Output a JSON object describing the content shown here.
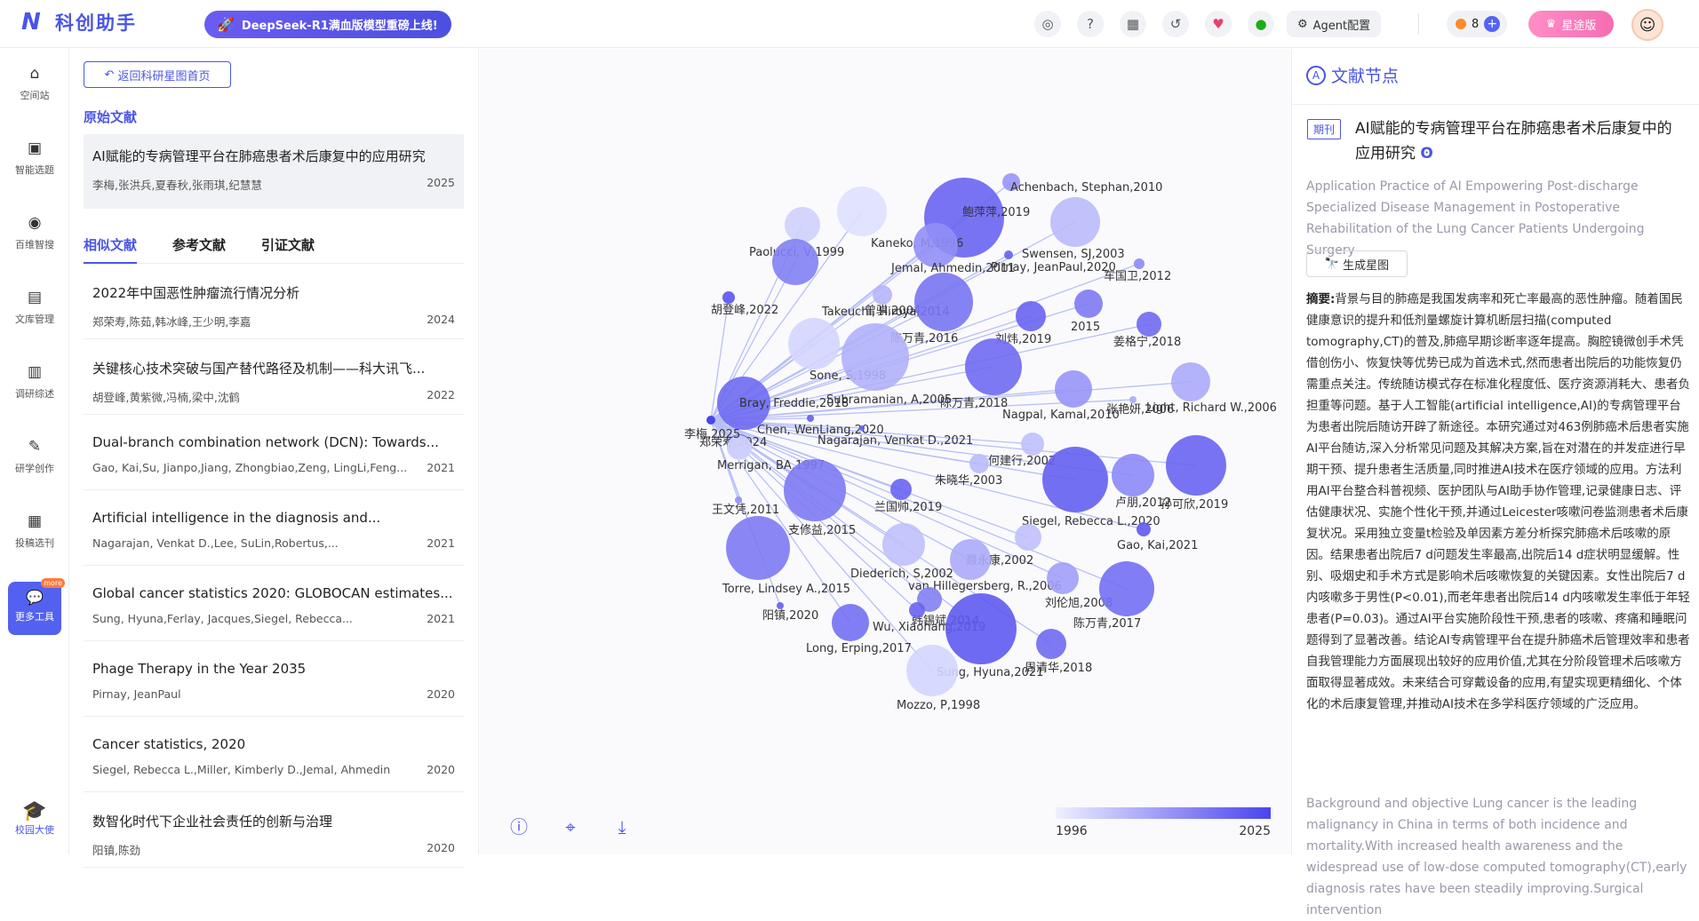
{
  "app": {
    "logo_mark": "N",
    "logo_text": "科创助手",
    "promo": "DeepSeek-R1满血版模型重磅上线!"
  },
  "topbar": {
    "agent_label": "Agent配置",
    "coins": "8",
    "vip_label": "星途版"
  },
  "nav": [
    {
      "label": "空间站",
      "icon": "⌂"
    },
    {
      "label": "智能选题",
      "icon": "▣"
    },
    {
      "label": "百维智搜",
      "icon": "◉"
    },
    {
      "label": "文库管理",
      "icon": "▤"
    },
    {
      "label": "调研综述",
      "icon": "▥"
    },
    {
      "label": "研学创作",
      "icon": "✎"
    },
    {
      "label": "投稿选刊",
      "icon": "▦"
    }
  ],
  "nav_more": {
    "label": "更多工具",
    "badge": "more"
  },
  "nav_campus": {
    "label": "校园大使"
  },
  "left": {
    "back_label": "返回科研星图首页",
    "original_label": "原始文献",
    "original": {
      "title": "AI赋能的专病管理平台在肺癌患者术后康复中的应用研究",
      "authors": "李梅,张洪兵,夏春秋,张雨琪,纪慧慧",
      "year": "2025"
    },
    "tabs": [
      "相似文献",
      "参考文献",
      "引证文献"
    ],
    "docs": [
      {
        "title": "2022年中国恶性肿瘤流行情况分析",
        "authors": "郑荣寿,陈茹,韩冰峰,王少明,李嘉",
        "year": "2024"
      },
      {
        "title": "关键核心技术突破与国产替代路径及机制——科大讯飞...",
        "authors": "胡登峰,黄紫微,冯楠,梁中,沈鹤",
        "year": "2022"
      },
      {
        "title": "Dual-branch combination network (DCN): Towards...",
        "authors": "Gao, Kai,Su, Jianpo,Jiang, Zhongbiao,Zeng, LingLi,Feng...",
        "year": "2021"
      },
      {
        "title": "Artificial intelligence in the diagnosis and...",
        "authors": "Nagarajan, Venkat D.,Lee, SuLin,Robertus,...",
        "year": "2021"
      },
      {
        "title": "Global cancer statistics 2020: GLOBOCAN estimates...",
        "authors": "Sung, Hyuna,Ferlay, Jacques,Siegel, Rebecca...",
        "year": "2021"
      },
      {
        "title": "Phage Therapy in the Year 2035",
        "authors": "Pirnay, JeanPaul",
        "year": "2020"
      },
      {
        "title": "Cancer statistics, 2020",
        "authors": "Siegel, Rebecca L.,Miller, Kimberly D.,Jemal, Ahmedin",
        "year": "2020"
      },
      {
        "title": "数智化时代下企业社会责任的创新与治理",
        "authors": "阳镇,陈劲",
        "year": "2020"
      }
    ]
  },
  "graph": {
    "center_label": "李梅,2025",
    "legend": {
      "min": "1996",
      "max": "2025"
    },
    "nodes": [
      {
        "label": "Achenbach, Stephan,2010",
        "year": 2010
      },
      {
        "label": "鲍萍萍,2019",
        "year": 2019
      },
      {
        "label": "Kaneko, M,1996",
        "year": 1996
      },
      {
        "label": "Paolucci, V,1999",
        "year": 1999
      },
      {
        "label": "Swensen, SJ,2003",
        "year": 2003
      },
      {
        "label": "Jemal, Ahmedin,2011",
        "year": 2011
      },
      {
        "label": "Pirnay, JeanPaul,2020",
        "year": 2020
      },
      {
        "label": "车国卫,2012",
        "year": 2012
      },
      {
        "label": "胡登峰,2022",
        "year": 2022
      },
      {
        "label": "Takeuchi, Hiroya,2014",
        "year": 2014
      },
      {
        "label": "曾骐,2004",
        "year": 2004
      },
      {
        "label": "2015",
        "year": 2015
      },
      {
        "label": "刘炜,2019",
        "year": 2019
      },
      {
        "label": "陈万青,2016",
        "year": 2016
      },
      {
        "label": "姜格宁,2018",
        "year": 2018
      },
      {
        "label": "Sone, S,1998",
        "year": 1998
      },
      {
        "label": "Subramanian, A,2005",
        "year": 2005
      },
      {
        "label": "陈万青,2018",
        "year": 2018
      },
      {
        "label": "Bray, Freddie,2018",
        "year": 2018
      },
      {
        "label": "Nagpal, Kamal,2010",
        "year": 2010
      },
      {
        "label": "张艳妍,2006",
        "year": 2006
      },
      {
        "label": "Light, Richard W.,2006",
        "year": 2006
      },
      {
        "label": "郑荣寿,2024",
        "year": 2024
      },
      {
        "label": "Chen, WenLiang,2020",
        "year": 2020
      },
      {
        "label": "Nagarajan, Venkat D.,2021",
        "year": 2021
      },
      {
        "label": "何建行,2002",
        "year": 2002
      },
      {
        "label": "Merrigan, BA,1997",
        "year": 1997
      },
      {
        "label": "朱晓华,2003",
        "year": 2003
      },
      {
        "label": "卢朋,2012",
        "year": 2012
      },
      {
        "label": "孙可欣,2019",
        "year": 2019
      },
      {
        "label": "王文凭,2011",
        "year": 2011
      },
      {
        "label": "兰国帅,2019",
        "year": 2019
      },
      {
        "label": "支修益,2015",
        "year": 2015
      },
      {
        "label": "Siegel, Rebecca L.,2020",
        "year": 2020
      },
      {
        "label": "Gao, Kai,2021",
        "year": 2021
      },
      {
        "label": "聂永康,2002",
        "year": 2002
      },
      {
        "label": "Diederich, S,2002",
        "year": 2002
      },
      {
        "label": "van Hillegersberg, R.,2006",
        "year": 2006
      },
      {
        "label": "Torre, Lindsey A.,2015",
        "year": 2015
      },
      {
        "label": "韩锡斌,2014",
        "year": 2014
      },
      {
        "label": "刘伦旭,2008",
        "year": 2008
      },
      {
        "label": "陈万青,2017",
        "year": 2017
      },
      {
        "label": "阳镇,2020",
        "year": 2020
      },
      {
        "label": "Wu, Xiaohang,2019",
        "year": 2019
      },
      {
        "label": "Long, Erping,2017",
        "year": 2017
      },
      {
        "label": "周清华,2018",
        "year": 2018
      },
      {
        "label": "Sung, Hyuna,2021",
        "year": 2021
      },
      {
        "label": "Mozzo, P,1998",
        "year": 1998
      }
    ]
  },
  "right": {
    "header": "文献节点",
    "tag": "期刊",
    "title": "AI赋能的专病管理平台在肺癌患者术后康复中的应用研究",
    "title_en": "Application Practice of AI Empowering Post-discharge Specialized Disease Management in Postoperative Rehabilitation of the Lung Cancer Patients Undergoing Surgery",
    "gen_label": "生成星图",
    "abstract_label": "摘要:",
    "abstract": "背景与目的肺癌是我国发病率和死亡率最高的恶性肿瘤。随着国民健康意识的提升和低剂量螺旋计算机断层扫描(computed tomography,CT)的普及,肺癌早期诊断率逐年提高。胸腔镜微创手术凭借创伤小、恢复快等优势已成为首选术式,然而患者出院后的功能恢复仍需重点关注。传统随访模式存在标准化程度低、医疗资源消耗大、患者负担重等问题。基于人工智能(artificial intelligence,AI)的专病管理平台为患者出院后随访开辟了新途径。本研究通过对463例肺癌术后患者实施AI平台随访,深入分析常见问题及其解决方案,旨在对潜在的并发症进行早期干预、提升患者生活质量,同时推进AI技术在医疗领域的应用。方法利用AI平台整合科普视频、医护团队与AI助手协作管理,记录健康日志、评估健康状况、实施个性化干预,并通过Leicester咳嗽问卷监测患者术后康复状况。采用独立变量t检验及单因素方差分析探究肺癌术后咳嗽的原因。结果患者出院后7 d问题发生率最高,出院后14 d症状明显缓解。性别、吸烟史和手术方式是影响术后咳嗽恢复的关键因素。女性出院后7 d内咳嗽多于男性(P<0.01),而老年患者出院后14 d内咳嗽发生率低于年轻患者(P=0.03)。通过AI平台实施阶段性干预,患者的咳嗽、疼痛和睡眠问题得到了显著改善。结论AI专病管理平台在提升肺癌术后管理效率和患者自我管理能力方面展现出较好的应用价值,尤其在分阶段管理术后咳嗽方面取得显著成效。未来结合可穿戴设备的应用,有望实现更精细化、个体化的术后康复管理,并推动AI技术在多学科医疗领域的广泛应用。",
    "abstract_en": "Background and objective Lung cancer is the leading malignancy in China in terms of both incidence and mortality.With increased health awareness and the widespread use of low-dose computed tomography(CT),early diagnosis rates have been steadily improving.Surgical intervention"
  }
}
